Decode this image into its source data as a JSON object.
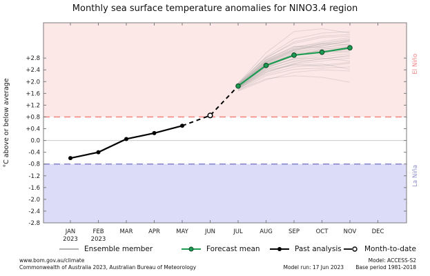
{
  "title": "Monthly sea surface temperature anomalies for NINO3.4 region",
  "legend": {
    "ensemble": "Ensemble member",
    "forecast": "Forecast mean",
    "past": "Past analysis",
    "mtd": "Month-to-date"
  },
  "footer": {
    "url": "www.bom.gov.au/climate",
    "copyright": "Commonwealth of Australia 2023, Australian Bureau of Meteorology",
    "model_run": "Model run: 17 Jun 2023",
    "model": "Model: ACCESS-S2",
    "base_period": "Base period 1981-2018"
  },
  "colors": {
    "band_el_nino": "#fce8e6",
    "band_la_nina": "#dcdcf8",
    "threshold_el_nino": "#f5827a",
    "threshold_la_nina": "#8282cc",
    "label_el_nino": "#f08080",
    "label_la_nina": "#8c8ccc",
    "forecast": "#1e9b53",
    "forecast_edge": "#0c4a26",
    "past": "#000000",
    "ensemble": "#999999",
    "zero_line": "#c9c9c9",
    "frame": "#7a7a7a",
    "text": "#1a1a1a"
  },
  "chart_data": {
    "type": "line",
    "title": "Monthly sea surface temperature anomalies for NINO3.4 region",
    "xlabel": "",
    "ylabel": "°C above or below average",
    "ylim": [
      -2.8,
      4.0
    ],
    "grid": "zero-line only",
    "legend_position": "bottom",
    "yticks": [
      {
        "v": 2.8,
        "label": "+2.8"
      },
      {
        "v": 2.4,
        "label": "+2.4"
      },
      {
        "v": 2.0,
        "label": "+2.0"
      },
      {
        "v": 1.6,
        "label": "+1.6"
      },
      {
        "v": 1.2,
        "label": "+1.2"
      },
      {
        "v": 0.8,
        "label": "+0.8"
      },
      {
        "v": 0.4,
        "label": "+0.4"
      },
      {
        "v": 0.0,
        "label": "0.0"
      },
      {
        "v": -0.4,
        "label": "-0.4"
      },
      {
        "v": -0.8,
        "label": "-0.8"
      },
      {
        "v": -1.2,
        "label": "-1.2"
      },
      {
        "v": -1.6,
        "label": "-1.6"
      },
      {
        "v": -2.0,
        "label": "-2.0"
      },
      {
        "v": -2.4,
        "label": "-2.4"
      },
      {
        "v": -2.8,
        "label": "-2.8"
      }
    ],
    "categories": [
      "JAN",
      "FEB",
      "MAR",
      "APR",
      "MAY",
      "JUN",
      "JUL",
      "AUG",
      "SEP",
      "OCT",
      "NOV",
      "DEC"
    ],
    "year_labels": [
      {
        "index": 0,
        "label": "2023"
      },
      {
        "index": 1,
        "label": "2023"
      }
    ],
    "bands": [
      {
        "name": "El Niño",
        "from": 0.8,
        "to": 4.0,
        "color_key": "band_el_nino",
        "label_color_key": "label_el_nino",
        "label_at": 2.6
      },
      {
        "name": "La Niña",
        "from": -2.8,
        "to": -0.8,
        "color_key": "band_la_nina",
        "label_color_key": "label_la_nina",
        "label_at": -1.2
      }
    ],
    "thresholds": [
      {
        "name": "el-nino-threshold",
        "value": 0.8,
        "color_key": "threshold_el_nino"
      },
      {
        "name": "la-nina-threshold",
        "value": -0.8,
        "color_key": "threshold_la_nina"
      }
    ],
    "series": {
      "past_analysis": {
        "name": "Past analysis",
        "months": [
          "JAN",
          "FEB",
          "MAR",
          "APR",
          "MAY"
        ],
        "x": [
          0,
          1,
          2,
          3,
          4
        ],
        "values": [
          -0.6,
          -0.4,
          0.05,
          0.25,
          0.5
        ]
      },
      "month_to_date": {
        "name": "Month-to-date",
        "month": "JUN",
        "marker_x": 5,
        "marker_value": 0.85,
        "x": [
          4,
          5,
          6
        ],
        "values": [
          0.5,
          0.85,
          1.85
        ]
      },
      "forecast_mean": {
        "name": "Forecast mean",
        "months": [
          "JUL",
          "AUG",
          "SEP",
          "OCT",
          "NOV"
        ],
        "x": [
          6,
          7,
          8,
          9,
          10
        ],
        "values": [
          1.85,
          2.55,
          2.9,
          3.0,
          3.15
        ]
      },
      "ensemble_x": [
        6,
        7,
        8,
        9,
        10
      ],
      "ensemble_members": [
        [
          1.8,
          2.45,
          2.8,
          2.95,
          3.1
        ],
        [
          1.85,
          2.62,
          3.0,
          3.1,
          3.22
        ],
        [
          1.9,
          2.7,
          3.1,
          3.25,
          3.35
        ],
        [
          1.75,
          2.3,
          2.6,
          2.7,
          2.8
        ],
        [
          1.82,
          2.55,
          2.95,
          3.05,
          3.0
        ],
        [
          1.88,
          2.66,
          3.05,
          3.3,
          3.45
        ],
        [
          1.95,
          2.8,
          3.35,
          3.55,
          3.6
        ],
        [
          1.7,
          2.2,
          2.42,
          2.46,
          2.5
        ],
        [
          1.85,
          2.5,
          2.76,
          2.9,
          3.05
        ],
        [
          1.9,
          2.75,
          3.2,
          3.16,
          3.26
        ],
        [
          1.8,
          2.4,
          2.7,
          2.85,
          2.95
        ],
        [
          1.78,
          2.35,
          2.56,
          2.6,
          2.42
        ],
        [
          1.92,
          2.85,
          3.45,
          3.65,
          3.7
        ],
        [
          1.86,
          2.6,
          2.9,
          3.0,
          3.2
        ],
        [
          1.74,
          2.25,
          2.5,
          2.56,
          2.66
        ],
        [
          1.83,
          2.52,
          2.86,
          3.1,
          3.16
        ],
        [
          1.95,
          2.98,
          3.7,
          3.8,
          3.65
        ],
        [
          1.8,
          2.48,
          2.78,
          2.8,
          2.7
        ],
        [
          1.87,
          2.66,
          3.08,
          3.2,
          3.4
        ],
        [
          1.72,
          2.1,
          2.2,
          2.15,
          1.98
        ],
        [
          1.84,
          2.58,
          2.96,
          3.05,
          3.1
        ],
        [
          1.9,
          2.72,
          3.15,
          3.35,
          3.5
        ],
        [
          1.79,
          2.42,
          2.68,
          2.76,
          2.9
        ],
        [
          1.85,
          2.62,
          3.02,
          3.15,
          3.3
        ],
        [
          1.93,
          2.82,
          3.3,
          3.5,
          3.55
        ],
        [
          1.76,
          2.32,
          2.62,
          2.78,
          2.86
        ],
        [
          1.88,
          2.68,
          3.12,
          3.28,
          3.42
        ],
        [
          1.81,
          2.5,
          2.88,
          3.02,
          3.18
        ],
        [
          1.68,
          2.06,
          2.32,
          2.4,
          2.36
        ],
        [
          1.86,
          2.64,
          3.06,
          3.22,
          3.38
        ],
        [
          1.91,
          2.74,
          3.18,
          3.3,
          3.25
        ],
        [
          1.77,
          2.38,
          2.58,
          2.52,
          2.62
        ]
      ]
    }
  }
}
